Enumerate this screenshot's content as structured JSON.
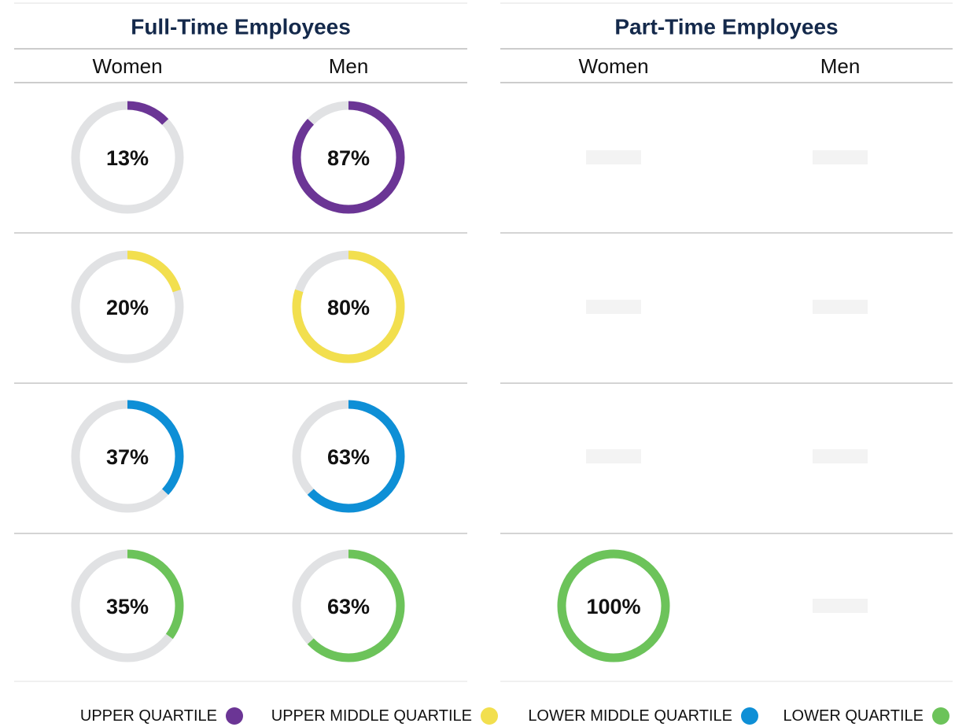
{
  "panels": [
    {
      "title": "Full-Time Employees",
      "columns": [
        "Women",
        "Men"
      ],
      "rows": [
        [
          {
            "value": 13,
            "label": "13%"
          },
          {
            "value": 87,
            "label": "87%"
          }
        ],
        [
          {
            "value": 20,
            "label": "20%"
          },
          {
            "value": 80,
            "label": "80%"
          }
        ],
        [
          {
            "value": 37,
            "label": "37%"
          },
          {
            "value": 63,
            "label": "63%"
          }
        ],
        [
          {
            "value": 35,
            "label": "35%"
          },
          {
            "value": 63,
            "label": "63%"
          }
        ]
      ]
    },
    {
      "title": "Part-Time Employees",
      "columns": [
        "Women",
        "Men"
      ],
      "rows": [
        [
          null,
          null
        ],
        [
          null,
          null
        ],
        [
          null,
          null
        ],
        [
          {
            "value": 100,
            "label": "100%"
          },
          null
        ]
      ]
    }
  ],
  "legend": [
    {
      "name": "UPPER QUARTILE",
      "color": "#6b3595"
    },
    {
      "name": "UPPER MIDDLE QUARTILE",
      "color": "#f2df4e"
    },
    {
      "name": "LOWER MIDDLE QUARTILE",
      "color": "#0e8fd6"
    },
    {
      "name": "LOWER QUARTILE",
      "color": "#6cc35a"
    }
  ]
}
